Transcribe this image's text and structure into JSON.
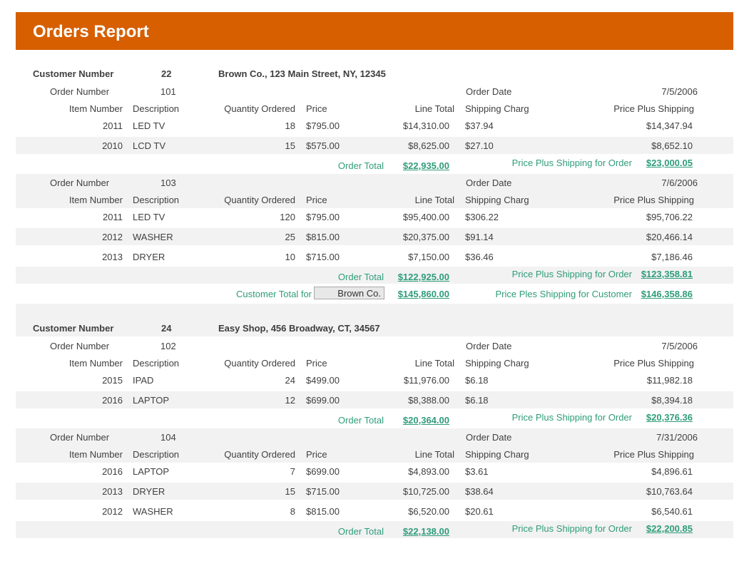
{
  "report": {
    "title": "Orders Report"
  },
  "labels": {
    "customer_number": "Customer Number",
    "order_number": "Order Number",
    "order_date": "Order Date",
    "item_number": "Item Number",
    "description": "Description",
    "quantity_ordered": "Quantity Ordered",
    "price": "Price",
    "line_total": "Line Total",
    "shipping_charge": "Shipping Charg",
    "price_plus_shipping": "Price Plus Shipping",
    "order_total": "Order Total",
    "price_plus_shipping_order": "Price Plus Shipping for Order",
    "customer_total_for": "Customer Total for",
    "price_ples_shipping_customer": "Price Ples Shipping for Customer"
  },
  "customers": [
    {
      "number": "22",
      "info": "Brown Co., 123 Main Street, NY, 12345",
      "name_box": "Brown Co.",
      "customer_total": "$145,860.00",
      "customer_pps_total": "$146,358.86",
      "orders": [
        {
          "number": "101",
          "date": "7/5/2006",
          "items": [
            {
              "item": "2011",
              "desc": "LED TV",
              "qty": "18",
              "price": "$795.00",
              "line_total": "$14,310.00",
              "shipping": "$37.94",
              "pps": "$14,347.94"
            },
            {
              "item": "2010",
              "desc": "LCD TV",
              "qty": "15",
              "price": "$575.00",
              "line_total": "$8,625.00",
              "shipping": "$27.10",
              "pps": "$8,652.10"
            }
          ],
          "order_total": "$22,935.00",
          "pps_total": "$23,000.05"
        },
        {
          "number": "103",
          "date": "7/6/2006",
          "items": [
            {
              "item": "2011",
              "desc": "LED TV",
              "qty": "120",
              "price": "$795.00",
              "line_total": "$95,400.00",
              "shipping": "$306.22",
              "pps": "$95,706.22"
            },
            {
              "item": "2012",
              "desc": "WASHER",
              "qty": "25",
              "price": "$815.00",
              "line_total": "$20,375.00",
              "shipping": "$91.14",
              "pps": "$20,466.14"
            },
            {
              "item": "2013",
              "desc": "DRYER",
              "qty": "10",
              "price": "$715.00",
              "line_total": "$7,150.00",
              "shipping": "$36.46",
              "pps": "$7,186.46"
            }
          ],
          "order_total": "$122,925.00",
          "pps_total": "$123,358.81"
        }
      ]
    },
    {
      "number": "24",
      "info": "Easy Shop, 456 Broadway, CT, 34567",
      "orders": [
        {
          "number": "102",
          "date": "7/5/2006",
          "items": [
            {
              "item": "2015",
              "desc": "IPAD",
              "qty": "24",
              "price": "$499.00",
              "line_total": "$11,976.00",
              "shipping": "$6.18",
              "pps": "$11,982.18"
            },
            {
              "item": "2016",
              "desc": "LAPTOP",
              "qty": "12",
              "price": "$699.00",
              "line_total": "$8,388.00",
              "shipping": "$6.18",
              "pps": "$8,394.18"
            }
          ],
          "order_total": "$20,364.00",
          "pps_total": "$20,376.36"
        },
        {
          "number": "104",
          "date": "7/31/2006",
          "items": [
            {
              "item": "2016",
              "desc": "LAPTOP",
              "qty": "7",
              "price": "$699.00",
              "line_total": "$4,893.00",
              "shipping": "$3.61",
              "pps": "$4,896.61"
            },
            {
              "item": "2013",
              "desc": "DRYER",
              "qty": "15",
              "price": "$715.00",
              "line_total": "$10,725.00",
              "shipping": "$38.64",
              "pps": "$10,763.64"
            },
            {
              "item": "2012",
              "desc": "WASHER",
              "qty": "8",
              "price": "$815.00",
              "line_total": "$6,520.00",
              "shipping": "$20.61",
              "pps": "$6,540.61"
            }
          ],
          "order_total": "$22,138.00",
          "pps_total": "$22,200.85"
        }
      ]
    }
  ]
}
